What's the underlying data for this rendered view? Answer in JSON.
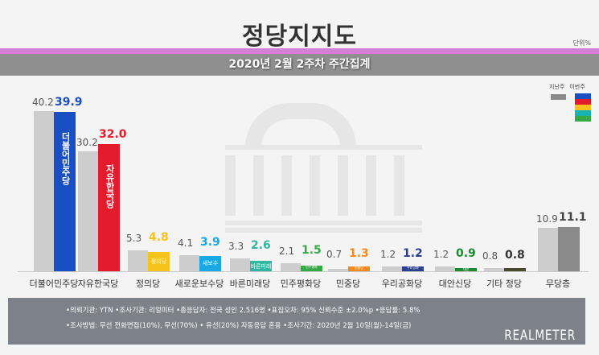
{
  "header": {
    "title": "정당지지도",
    "unit": "단위%",
    "subtitle": "2020년 2월 2주차 주간집계"
  },
  "legend": {
    "prev_label": "지난주",
    "cur_label": "이번주",
    "prev_color": "#8a8a8a",
    "cur_colors": [
      "#1a4fc4",
      "#e41b2d",
      "#f6c21c",
      "#19b2b3",
      "#35a946"
    ]
  },
  "chart_data": {
    "type": "bar",
    "title": "정당지지도",
    "subtitle": "2020년 2월 2주차 주간집계",
    "xlabel": "",
    "ylabel": "단위%",
    "legend": [
      "지난주",
      "이번주"
    ],
    "legend_position": "top-right",
    "grid": false,
    "categories": [
      "더불어민주당",
      "자유한국당",
      "정의당",
      "새로운보수당",
      "바른미래당",
      "민주평화당",
      "민중당",
      "우리공화당",
      "대안신당",
      "기타 정당",
      "무당층"
    ],
    "series": [
      {
        "name": "지난주",
        "values": [
          40.2,
          30.2,
          5.3,
          4.1,
          3.3,
          2.1,
          0.7,
          1.2,
          1.2,
          0.8,
          10.9
        ]
      },
      {
        "name": "이번주",
        "values": [
          39.9,
          32.0,
          4.8,
          3.9,
          2.6,
          1.5,
          1.3,
          1.2,
          0.9,
          0.8,
          11.1
        ]
      }
    ],
    "cur_colors": [
      "#1a4fc4",
      "#e41b2d",
      "#f6c21c",
      "#19a8e4",
      "#2fb7a0",
      "#35a946",
      "#f08a24",
      "#2a3f8f",
      "#1d8a2e",
      "#4a4a2e",
      "#8a8a8a"
    ],
    "ylim": [
      0,
      45
    ]
  },
  "bars": [
    {
      "name": "더불어민주당",
      "prev": "40.2",
      "cur": "39.9",
      "logo": "더불어민주당"
    },
    {
      "name": "자유한국당",
      "prev": "30.2",
      "cur": "32.0",
      "logo": "자유한국당"
    },
    {
      "name": "정의당",
      "prev": "5.3",
      "cur": "4.8",
      "logo": "정의당"
    },
    {
      "name": "새로운보수당",
      "prev": "4.1",
      "cur": "3.9",
      "logo": "새보수"
    },
    {
      "name": "바른미래당",
      "prev": "3.3",
      "cur": "2.6",
      "logo": "바른미래"
    },
    {
      "name": "민주평화당",
      "prev": "2.1",
      "cur": "1.5",
      "logo": "민주평화"
    },
    {
      "name": "민중당",
      "prev": "0.7",
      "cur": "1.3",
      "logo": "민중당"
    },
    {
      "name": "우리공화당",
      "prev": "1.2",
      "cur": "1.2",
      "logo": "우리공화"
    },
    {
      "name": "대안신당",
      "prev": "1.2",
      "cur": "0.9",
      "logo": "대안"
    },
    {
      "name": "기타 정당",
      "prev": "0.8",
      "cur": "0.8",
      "logo": ""
    },
    {
      "name": "무당층",
      "prev": "10.9",
      "cur": "11.1",
      "logo": ""
    }
  ],
  "footer": {
    "line1": "•의뢰기관: YTN •조사기관: 리얼미터 •총응답자: 전국 성인 2,516명 •표집오차: 95% 신뢰수준 ±2.0%p •응답률: 5.8%",
    "line2": "•조사방법: 무선 전화면접(10%), 무선(70%) • 유선(20%) 자동응답 혼용  •조사기간: 2020년 2월 10일(월)-14일(금)",
    "brand": "REALMETER"
  }
}
